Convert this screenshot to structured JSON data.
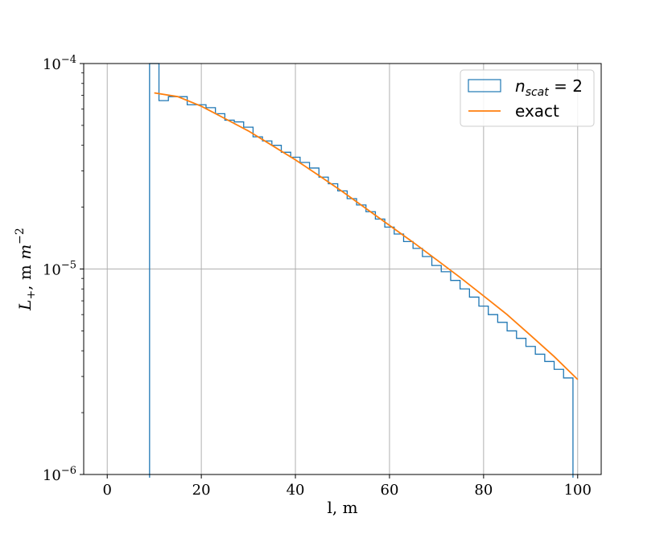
{
  "chart_data": {
    "type": "line",
    "xlabel": "l, m",
    "ylabel_main": "L",
    "ylabel_sub": "+",
    "ylabel_rest": ", m",
    "ylabel_sup": "−2",
    "xlim": [
      -5,
      105
    ],
    "ylim": [
      1e-06,
      0.0001
    ],
    "yscale": "log",
    "grid": true,
    "legend_position": "upper right",
    "x_ticks": [
      0,
      20,
      40,
      60,
      80,
      100
    ],
    "x_tick_labels": [
      "0",
      "20",
      "40",
      "60",
      "80",
      "100"
    ],
    "y_ticks": [
      1e-06,
      1e-05,
      0.0001
    ],
    "y_tick_labels": [
      {
        "base": "10",
        "exp": "−6"
      },
      {
        "base": "10",
        "exp": "−5"
      },
      {
        "base": "10",
        "exp": "−4"
      }
    ],
    "colors": {
      "histogram": "#1f77b4",
      "exact": "#ff7f0e",
      "grid": "#b0b0b0"
    },
    "series": [
      {
        "name": "n_scat = 2",
        "legend_main": "n",
        "legend_sub": "scat",
        "legend_rest": " = 2",
        "kind": "step-histogram",
        "bin_edges": [
          9,
          11,
          13,
          15,
          17,
          19,
          21,
          23,
          25,
          27,
          29,
          31,
          33,
          35,
          37,
          39,
          41,
          43,
          45,
          47,
          49,
          51,
          53,
          55,
          57,
          59,
          61,
          63,
          65,
          67,
          69,
          71,
          73,
          75,
          77,
          79,
          81,
          83,
          85,
          87,
          89,
          91,
          93,
          95,
          97,
          99
        ],
        "values": [
          0.0001,
          6.6e-05,
          6.9e-05,
          6.9e-05,
          6.3e-05,
          6.3e-05,
          6.1e-05,
          5.7e-05,
          5.3e-05,
          5.2e-05,
          4.9e-05,
          4.4e-05,
          4.2e-05,
          4e-05,
          3.7e-05,
          3.5e-05,
          3.3e-05,
          3.1e-05,
          2.8e-05,
          2.6e-05,
          2.4e-05,
          2.2e-05,
          2.05e-05,
          1.9e-05,
          1.75e-05,
          1.6e-05,
          1.48e-05,
          1.36e-05,
          1.26e-05,
          1.15e-05,
          1.04e-05,
          9.7e-06,
          8.8e-06,
          8e-06,
          7.3e-06,
          6.6e-06,
          6e-06,
          5.5e-06,
          5e-06,
          4.6e-06,
          4.2e-06,
          3.85e-06,
          3.55e-06,
          3.25e-06,
          2.95e-06
        ]
      },
      {
        "name": "exact",
        "kind": "line",
        "x": [
          10,
          15,
          20,
          25,
          30,
          35,
          40,
          45,
          50,
          55,
          60,
          65,
          70,
          75,
          80,
          85,
          90,
          95,
          100
        ],
        "y": [
          7.2e-05,
          6.9e-05,
          6.2e-05,
          5.4e-05,
          4.7e-05,
          4e-05,
          3.4e-05,
          2.85e-05,
          2.38e-05,
          1.97e-05,
          1.63e-05,
          1.35e-05,
          1.11e-05,
          9.1e-06,
          7.4e-06,
          6e-06,
          4.75e-06,
          3.75e-06,
          2.9e-06
        ]
      }
    ]
  }
}
